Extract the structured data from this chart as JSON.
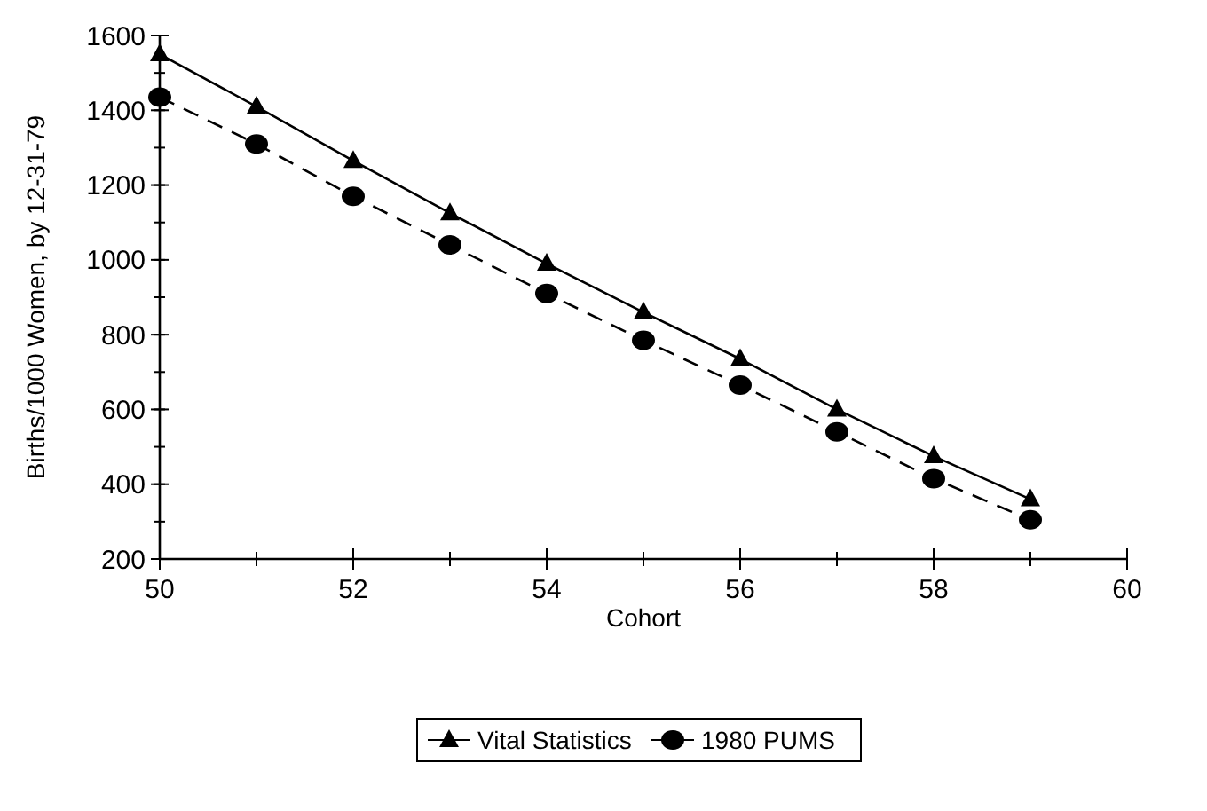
{
  "chart_data": {
    "type": "line",
    "xlabel": "Cohort",
    "ylabel": "Births/1000 Women, by 12-31-79",
    "x": [
      50,
      51,
      52,
      53,
      54,
      55,
      56,
      57,
      58,
      59
    ],
    "xlim": [
      50,
      60
    ],
    "xticks": [
      50,
      52,
      54,
      56,
      58,
      60
    ],
    "ylim": [
      200,
      1600
    ],
    "yticks": [
      200,
      400,
      600,
      800,
      1000,
      1200,
      1400,
      1600
    ],
    "grid": false,
    "legend": "bottom",
    "series": [
      {
        "name": "Vital Statistics",
        "color": "#000000",
        "marker": "triangle",
        "line_style": "solid",
        "values": [
          1550,
          1410,
          1265,
          1125,
          990,
          860,
          735,
          600,
          475,
          360
        ]
      },
      {
        "name": "1980 PUMS",
        "color": "#000000",
        "marker": "circle",
        "line_style": "dashed",
        "values": [
          1435,
          1310,
          1170,
          1040,
          910,
          785,
          665,
          540,
          415,
          305
        ]
      }
    ]
  }
}
